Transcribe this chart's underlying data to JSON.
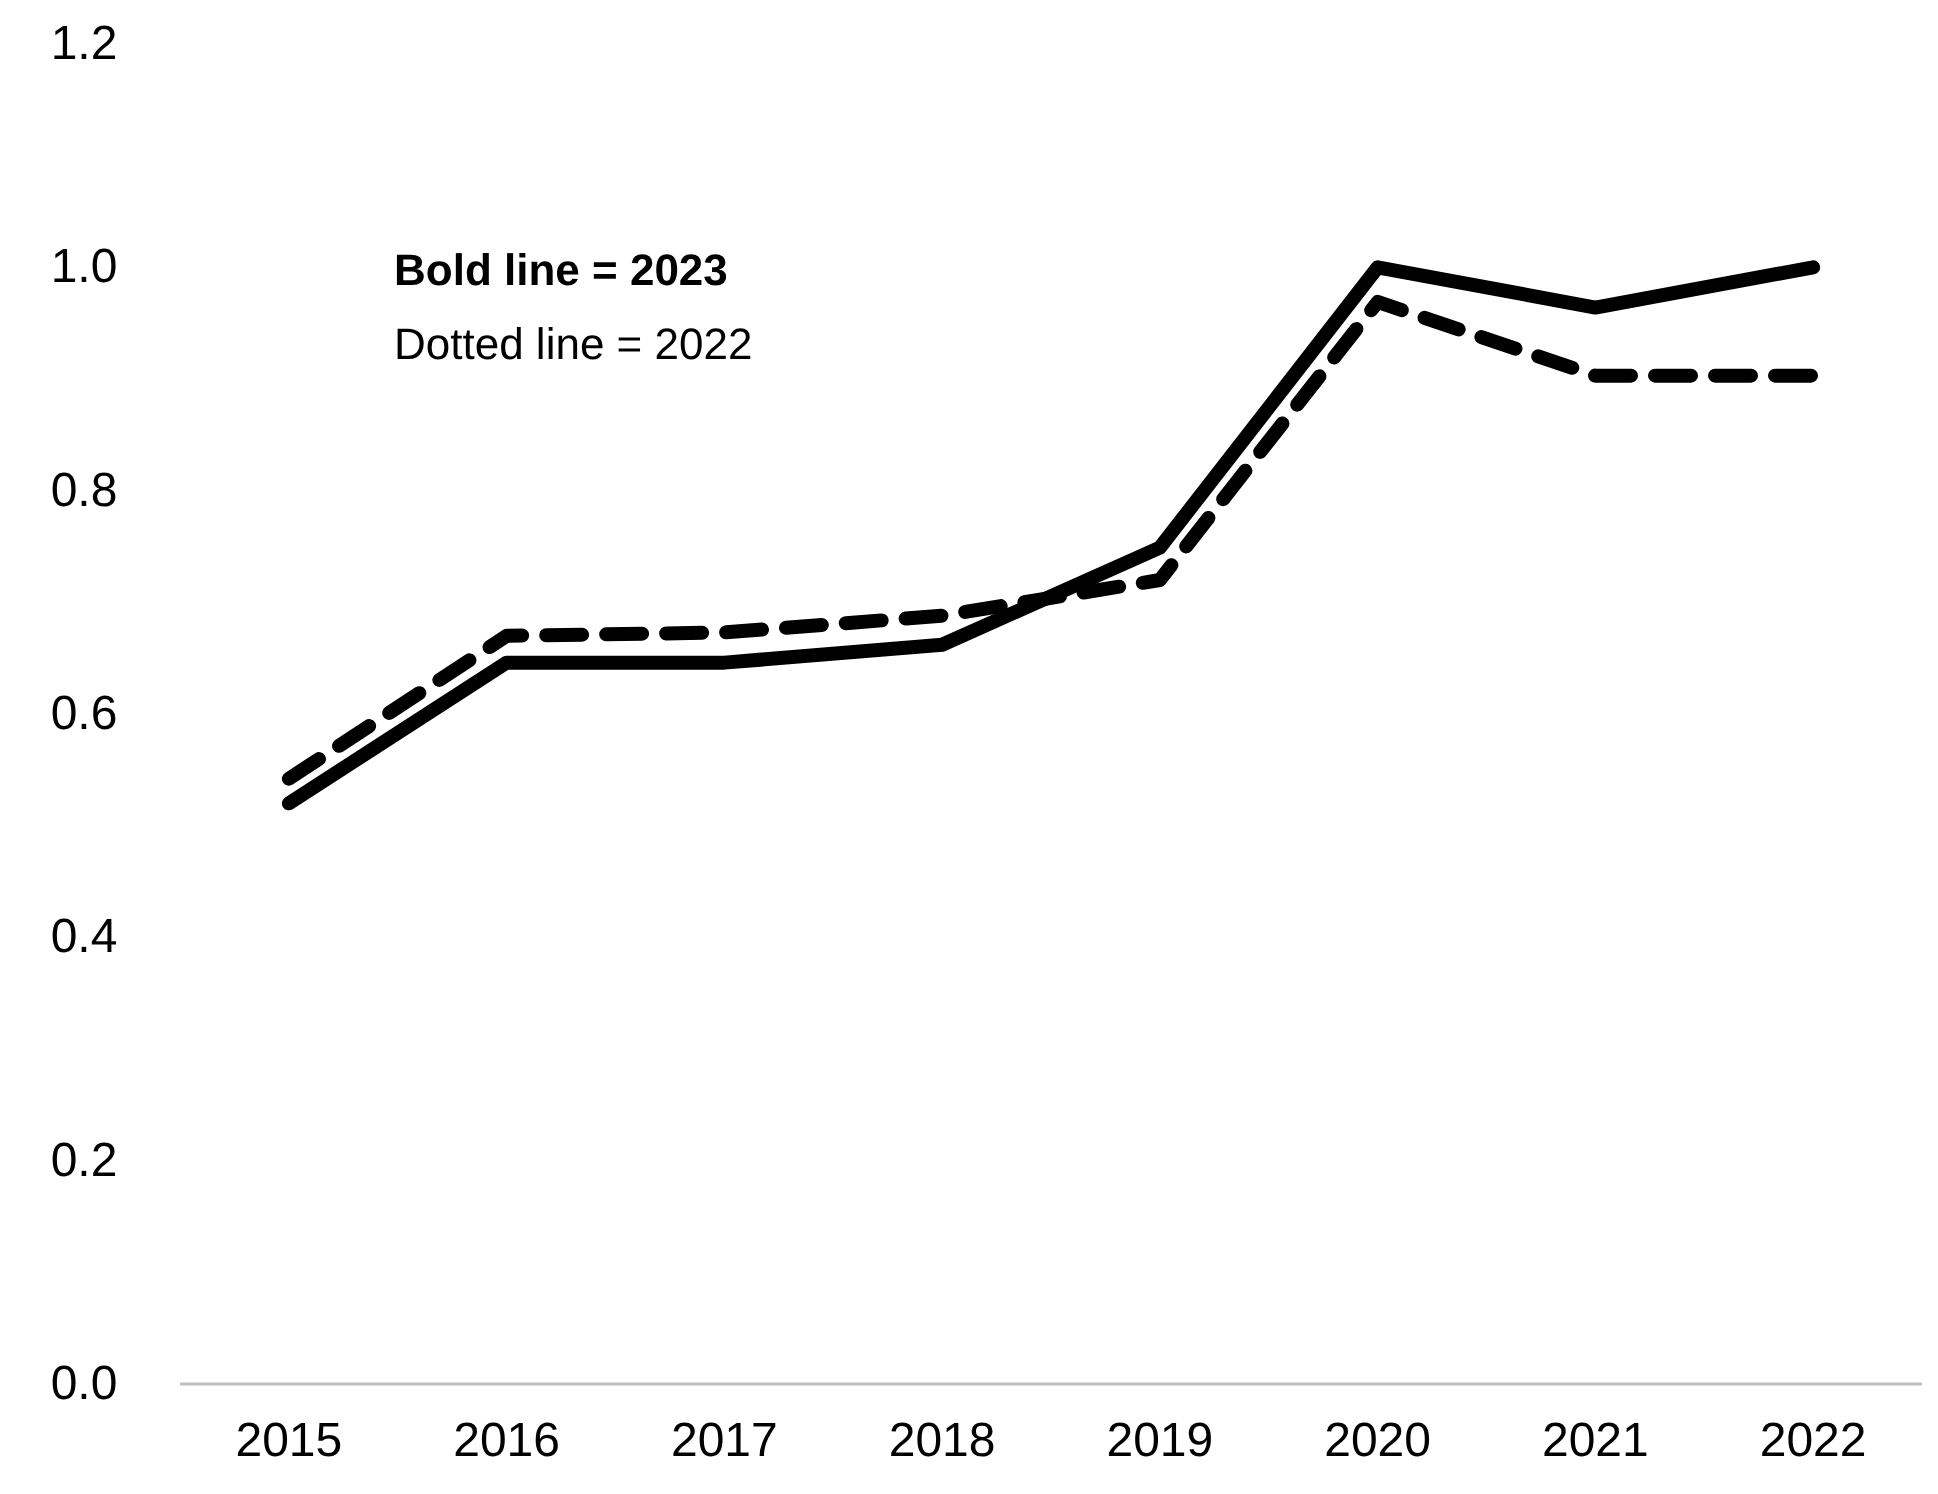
{
  "chart_data": {
    "type": "line",
    "categories": [
      "2015",
      "2016",
      "2017",
      "2018",
      "2019",
      "2020",
      "2021",
      "2022"
    ],
    "series": [
      {
        "color": "#000000",
        "line_style": "solid",
        "values": [
          0.52,
          0.646,
          0.646,
          0.662,
          0.749,
          1.0,
          0.964,
          1.0
        ]
      },
      {
        "color": "#000000",
        "line_style": "dashed",
        "values": [
          0.542,
          0.67,
          0.673,
          0.688,
          0.72,
          0.969,
          0.903,
          0.903
        ]
      }
    ],
    "ylim": [
      0,
      1.2
    ],
    "yticks": [
      {
        "value": 0,
        "label": "0.0"
      },
      {
        "value": 0.2,
        "label": "0.2"
      },
      {
        "value": 0.4,
        "label": "0.4"
      },
      {
        "value": 0.6,
        "label": "0.6"
      },
      {
        "value": 0.8,
        "label": "0.8"
      },
      {
        "value": 1.0,
        "label": "1.0"
      },
      {
        "value": 1.2,
        "label": "1.2"
      }
    ],
    "annotations": [
      "Bold line = 2023",
      "Dotted line = 2022"
    ],
    "grid": false
  }
}
